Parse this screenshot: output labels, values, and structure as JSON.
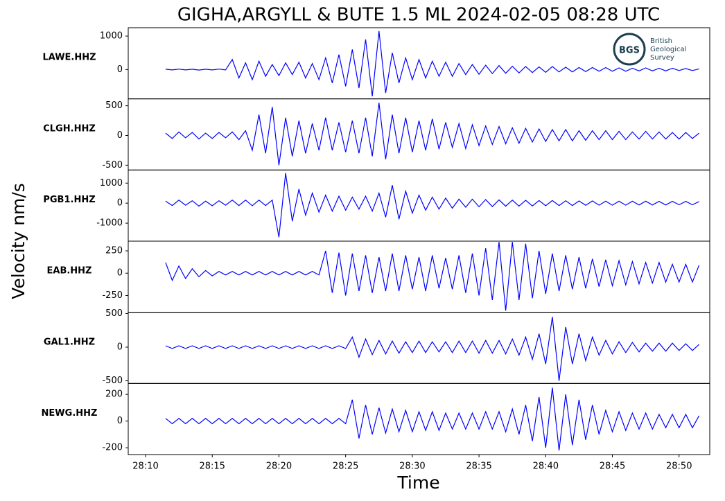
{
  "title": "GIGHA,ARGYLL & BUTE 1.5 ML   2024-02-05 08:28 UTC",
  "x_label": "Time",
  "y_label": "Velocity nm/s",
  "logo": {
    "initials": "BGS",
    "lines": [
      "British",
      "Geological",
      "Survey"
    ]
  },
  "chart_data": {
    "type": "line",
    "xlim": [
      8.7,
      52.3
    ],
    "xticks": [
      {
        "value": 10,
        "label": "28:10"
      },
      {
        "value": 15,
        "label": "28:15"
      },
      {
        "value": 20,
        "label": "28:20"
      },
      {
        "value": 25,
        "label": "28:25"
      },
      {
        "value": 30,
        "label": "28:30"
      },
      {
        "value": 35,
        "label": "28:35"
      },
      {
        "value": 40,
        "label": "28:40"
      },
      {
        "value": 45,
        "label": "28:45"
      },
      {
        "value": 50,
        "label": "28:50"
      }
    ],
    "x": [
      11.5,
      12,
      12.5,
      13,
      13.5,
      14,
      14.5,
      15,
      15.5,
      16,
      16.5,
      17,
      17.5,
      18,
      18.5,
      19,
      19.5,
      20,
      20.5,
      21,
      21.5,
      22,
      22.5,
      23,
      23.5,
      24,
      24.5,
      25,
      25.5,
      26,
      26.5,
      27,
      27.5,
      28,
      28.5,
      29,
      29.5,
      30,
      30.5,
      31,
      31.5,
      32,
      32.5,
      33,
      33.5,
      34,
      34.5,
      35,
      35.5,
      36,
      36.5,
      37,
      37.5,
      38,
      38.5,
      39,
      39.5,
      40,
      40.5,
      41,
      41.5,
      42,
      42.5,
      43,
      43.5,
      44,
      44.5,
      45,
      45.5,
      46,
      46.5,
      47,
      47.5,
      48,
      48.5,
      49,
      49.5,
      50,
      50.5,
      51,
      51.5
    ],
    "series": [
      {
        "name": "LAWE.HHZ",
        "color": "#0000ff",
        "ylim": [
          -875,
          1250
        ],
        "yticks": [
          0,
          1000
        ],
        "values": [
          10,
          -10,
          15,
          -10,
          10,
          -15,
          10,
          -10,
          15,
          -10,
          300,
          -250,
          200,
          -300,
          250,
          -200,
          150,
          -180,
          200,
          -150,
          220,
          -250,
          180,
          -300,
          350,
          -400,
          450,
          -500,
          600,
          -550,
          900,
          -800,
          1150,
          -700,
          500,
          -400,
          350,
          -300,
          300,
          -250,
          250,
          -200,
          220,
          -200,
          180,
          -150,
          150,
          -140,
          130,
          -120,
          120,
          -110,
          100,
          -100,
          90,
          -90,
          80,
          -80,
          90,
          -70,
          70,
          -70,
          60,
          -60,
          60,
          -50,
          60,
          -50,
          50,
          -50,
          40,
          -40,
          50,
          -40,
          40,
          -40,
          40,
          -30,
          30,
          -30,
          20
        ]
      },
      {
        "name": "CLGH.HHZ",
        "color": "#0000ff",
        "ylim": [
          -581,
          616
        ],
        "yticks": [
          -500,
          0,
          500
        ],
        "values": [
          40,
          -50,
          60,
          -40,
          50,
          -60,
          40,
          -50,
          50,
          -40,
          60,
          -70,
          80,
          -250,
          350,
          -300,
          480,
          -500,
          300,
          -350,
          250,
          -300,
          200,
          -250,
          300,
          -250,
          220,
          -280,
          250,
          -300,
          300,
          -350,
          550,
          -400,
          350,
          -300,
          300,
          -280,
          250,
          -250,
          280,
          -230,
          220,
          -200,
          200,
          -220,
          180,
          -170,
          160,
          -150,
          150,
          -140,
          130,
          -130,
          120,
          -110,
          110,
          -100,
          100,
          -90,
          100,
          -90,
          80,
          -80,
          80,
          -70,
          80,
          -70,
          70,
          -70,
          60,
          -60,
          70,
          -60,
          60,
          -60,
          50,
          -60,
          50,
          -50,
          40
        ]
      },
      {
        "name": "PGB1.HHZ",
        "color": "#0000ff",
        "ylim": [
          -1897,
          1655
        ],
        "yticks": [
          -1000,
          0,
          1000
        ],
        "values": [
          100,
          -120,
          150,
          -100,
          120,
          -150,
          100,
          -130,
          120,
          -100,
          150,
          -120,
          150,
          -130,
          150,
          -120,
          150,
          -1700,
          1500,
          -900,
          700,
          -600,
          500,
          -450,
          400,
          -400,
          350,
          -350,
          300,
          -300,
          350,
          -400,
          500,
          -700,
          900,
          -800,
          600,
          -500,
          400,
          -350,
          300,
          -300,
          250,
          -250,
          200,
          -200,
          200,
          -180,
          180,
          -170,
          160,
          -150,
          150,
          -150,
          140,
          -140,
          130,
          -130,
          130,
          -120,
          120,
          -120,
          110,
          -110,
          110,
          -100,
          100,
          -100,
          100,
          -100,
          100,
          -90,
          100,
          -90,
          90,
          -90,
          90,
          -80,
          90,
          -80,
          80
        ]
      },
      {
        "name": "EAB.HHZ",
        "color": "#0000ff",
        "ylim": [
          -438,
          359
        ],
        "yticks": [
          -250,
          0,
          250
        ],
        "values": [
          120,
          -80,
          80,
          -60,
          50,
          -40,
          30,
          -30,
          20,
          -20,
          20,
          -20,
          20,
          -20,
          20,
          -20,
          20,
          -20,
          20,
          -20,
          20,
          -20,
          20,
          -20,
          250,
          -220,
          230,
          -250,
          220,
          -200,
          200,
          -220,
          180,
          -200,
          220,
          -200,
          200,
          -180,
          180,
          -200,
          200,
          -170,
          170,
          -180,
          200,
          -220,
          220,
          -250,
          280,
          -300,
          350,
          -420,
          350,
          -300,
          330,
          -280,
          250,
          -230,
          220,
          -200,
          200,
          -180,
          180,
          -170,
          160,
          -150,
          150,
          -140,
          140,
          -130,
          130,
          -120,
          120,
          -110,
          120,
          -100,
          100,
          -100,
          100,
          -100,
          90
        ]
      },
      {
        "name": "GAL1.HHZ",
        "color": "#0000ff",
        "ylim": [
          -539,
          518
        ],
        "yticks": [
          -500,
          0,
          500
        ],
        "values": [
          20,
          -20,
          20,
          -20,
          20,
          -20,
          20,
          -20,
          20,
          -20,
          20,
          -20,
          20,
          -20,
          20,
          -20,
          20,
          -20,
          20,
          -20,
          20,
          -20,
          20,
          -20,
          20,
          -20,
          20,
          -20,
          150,
          -150,
          120,
          -110,
          100,
          -100,
          90,
          -90,
          80,
          -80,
          90,
          -80,
          80,
          -70,
          80,
          -80,
          90,
          -80,
          90,
          -90,
          100,
          -90,
          100,
          -100,
          120,
          -120,
          150,
          -180,
          200,
          -250,
          450,
          -500,
          300,
          -250,
          200,
          -200,
          150,
          -120,
          100,
          -100,
          80,
          -80,
          70,
          -70,
          60,
          -60,
          60,
          -60,
          60,
          -50,
          50,
          -50,
          40
        ]
      },
      {
        "name": "NEWG.HHZ",
        "color": "#0000ff",
        "ylim": [
          -251,
          282
        ],
        "yticks": [
          -200,
          0,
          200
        ],
        "values": [
          20,
          -20,
          20,
          -20,
          20,
          -20,
          20,
          -20,
          20,
          -20,
          20,
          -20,
          20,
          -20,
          20,
          -20,
          20,
          -20,
          20,
          -20,
          20,
          -20,
          20,
          -20,
          20,
          -20,
          20,
          -20,
          160,
          -130,
          120,
          -100,
          100,
          -90,
          90,
          -80,
          80,
          -80,
          70,
          -70,
          70,
          -70,
          60,
          -60,
          60,
          -60,
          60,
          -60,
          70,
          -60,
          70,
          -80,
          90,
          -100,
          120,
          -150,
          180,
          -200,
          250,
          -220,
          200,
          -180,
          160,
          -140,
          120,
          -100,
          80,
          -80,
          70,
          -70,
          60,
          -60,
          60,
          -60,
          50,
          -50,
          50,
          -50,
          50,
          -50,
          40
        ]
      }
    ]
  }
}
